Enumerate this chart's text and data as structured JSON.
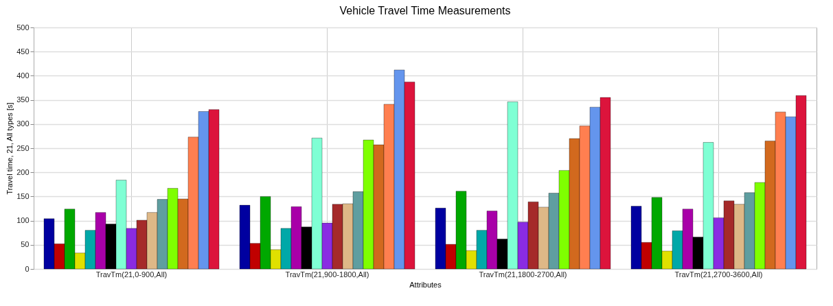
{
  "chart_data": {
    "type": "bar",
    "title": "Vehicle Travel Time Measurements",
    "xlabel": "Attributes",
    "ylabel": "Travel time, 21, All types [s]",
    "categories": [
      "TravTm(21,0-900,All)",
      "TravTm(21,900-1800,All)",
      "TravTm(21,1800-2700,All)",
      "TravTm(21,2700-3600,All)"
    ],
    "ylim": [
      0,
      500
    ],
    "yticks": [
      0,
      50,
      100,
      150,
      200,
      250,
      300,
      350,
      400,
      450,
      500
    ],
    "grid": true,
    "series": [
      {
        "color": "#0000a0",
        "values": [
          104,
          132,
          126,
          130
        ]
      },
      {
        "color": "#c00000",
        "values": [
          52,
          53,
          51,
          55
        ]
      },
      {
        "color": "#00a800",
        "values": [
          124,
          150,
          161,
          148
        ]
      },
      {
        "color": "#e0e000",
        "values": [
          33,
          40,
          38,
          37
        ]
      },
      {
        "color": "#00a8a8",
        "values": [
          80,
          84,
          80,
          79
        ]
      },
      {
        "color": "#a800a8",
        "values": [
          117,
          129,
          120,
          124
        ]
      },
      {
        "color": "#000000",
        "values": [
          93,
          87,
          62,
          66
        ]
      },
      {
        "color": "#7fffd4",
        "values": [
          184,
          271,
          346,
          262
        ]
      },
      {
        "color": "#8a2be2",
        "values": [
          84,
          95,
          97,
          106
        ]
      },
      {
        "color": "#a52a2a",
        "values": [
          101,
          134,
          139,
          141
        ]
      },
      {
        "color": "#deb887",
        "values": [
          117,
          135,
          128,
          134
        ]
      },
      {
        "color": "#5f9ea0",
        "values": [
          144,
          160,
          157,
          158
        ]
      },
      {
        "color": "#7fff00",
        "values": [
          167,
          267,
          204,
          179
        ]
      },
      {
        "color": "#d2691e",
        "values": [
          145,
          257,
          270,
          265
        ]
      },
      {
        "color": "#ff7f50",
        "values": [
          273,
          341,
          296,
          325
        ]
      },
      {
        "color": "#6495ed",
        "values": [
          326,
          412,
          335,
          315
        ]
      },
      {
        "color": "#dc143c",
        "values": [
          330,
          387,
          355,
          359
        ]
      }
    ]
  }
}
